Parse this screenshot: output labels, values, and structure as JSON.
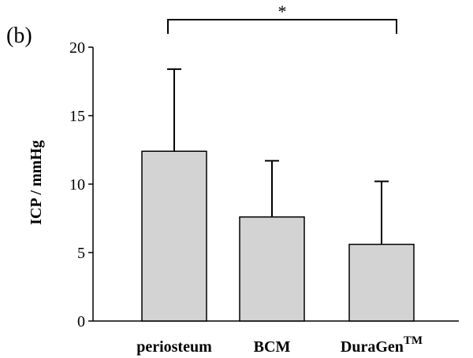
{
  "panel_label": "(b)",
  "significance_marker": "*",
  "chart_data": {
    "type": "bar",
    "title": "",
    "xlabel": "",
    "ylabel": "ICP / mmHg",
    "ylim": [
      0,
      20
    ],
    "yticks": [
      0,
      5,
      10,
      15,
      20
    ],
    "categories": [
      "periosteum",
      "BCM",
      "DuraGen"
    ],
    "category_superscripts": [
      "",
      "",
      "TM"
    ],
    "values": [
      12.4,
      7.6,
      5.6
    ],
    "error_upper": [
      18.4,
      11.7,
      10.2
    ],
    "significance": {
      "between": [
        "periosteum",
        "DuraGen"
      ],
      "label": "*"
    },
    "grid": false,
    "legend": "none",
    "colors": {
      "bar_fill": "#d3d3d3",
      "stroke": "#000000"
    }
  }
}
